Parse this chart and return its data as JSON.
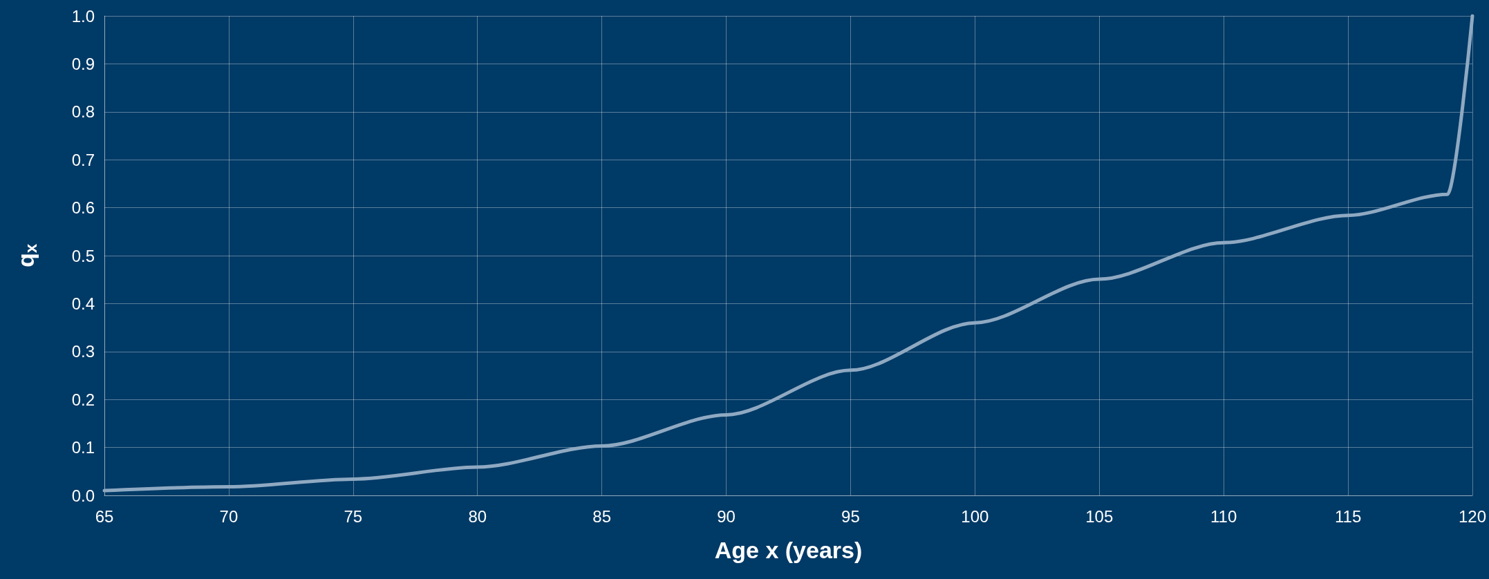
{
  "chart_data": {
    "type": "line",
    "xlabel": "Age x (years)",
    "ylabel": "q$_{x}$",
    "x": [
      65,
      70,
      75,
      80,
      85,
      90,
      95,
      100,
      105,
      110,
      115,
      119,
      120
    ],
    "series": [
      {
        "color": "#8fa9c2",
        "values": [
          0.01,
          0.018,
          0.034,
          0.059,
          0.103,
          0.168,
          0.261,
          0.36,
          0.451,
          0.527,
          0.584,
          0.628,
          1.0
        ]
      }
    ],
    "xlim": [
      65,
      120
    ],
    "xticks": [
      65,
      70,
      75,
      80,
      85,
      90,
      95,
      100,
      105,
      110,
      115,
      120
    ],
    "ylim": [
      0,
      1
    ],
    "yticks": [
      {
        "value": 0,
        "label": "0.0"
      },
      {
        "value": 0.1,
        "label": "0.1"
      },
      {
        "value": 0.2,
        "label": "0.2"
      },
      {
        "value": 0.3,
        "label": "0.3"
      },
      {
        "value": 0.4,
        "label": "0.4"
      },
      {
        "value": 0.5,
        "label": "0.5"
      },
      {
        "value": 0.6,
        "label": "0.6"
      },
      {
        "value": 0.7,
        "label": "0.7"
      },
      {
        "value": 0.8,
        "label": "0.8"
      },
      {
        "value": 0.9,
        "label": "0.9"
      },
      {
        "value": 1,
        "label": "1.0"
      }
    ],
    "grid": true,
    "marker": "none",
    "line_style": "solid"
  }
}
